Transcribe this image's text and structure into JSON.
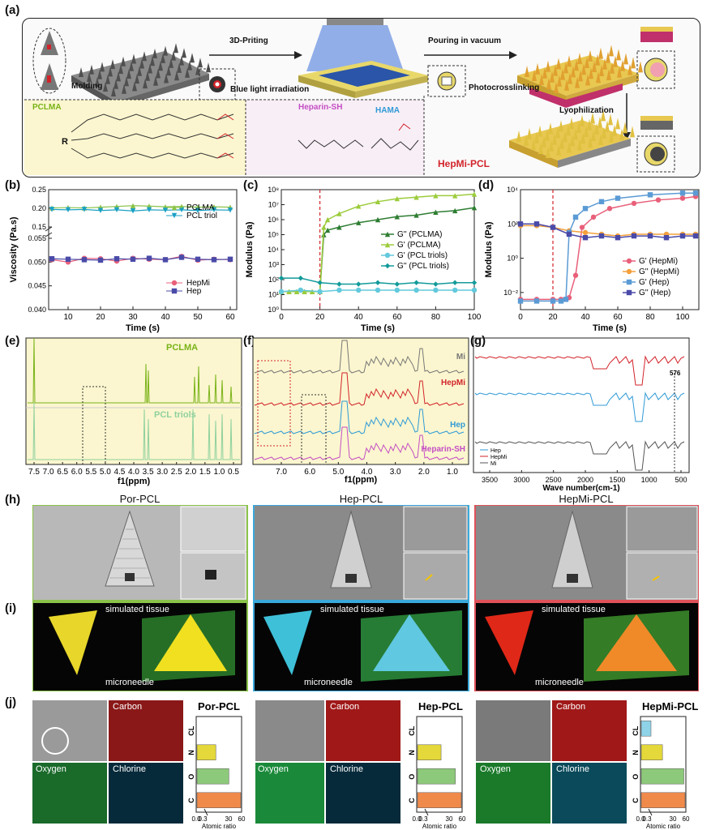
{
  "labels": {
    "a": "(a)",
    "b": "(b)",
    "c": "(c)",
    "d": "(d)",
    "e": "(e)",
    "f": "(f)",
    "g": "(g)",
    "h": "(h)",
    "i": "(i)",
    "j": "(j)"
  },
  "panel_a": {
    "molding": "Molding",
    "printing": "3D-Priting",
    "blue_light": "Blue light irradiation",
    "pouring": "Pouring in vacuum",
    "photocrosslinking": "Photocrosslinking",
    "lyophilization": "Lyophilization",
    "pclma": "PCLMA",
    "heparin_sh": "Heparin-SH",
    "hama": "HAMA",
    "r": "R",
    "hepmi_pcl": "HepMi-PCL",
    "colors": {
      "pclma": "#7ab317",
      "heparin": "#c44ec4",
      "hama": "#2f9ad6",
      "hepmi": "#d2232a"
    }
  },
  "chart_data": [
    {
      "id": "b",
      "type": "line",
      "xlabel": "Time (s)",
      "ylabel": "Viscosity (Pa.s)",
      "xlim": [
        4,
        62
      ],
      "xticks": [
        "10",
        "20",
        "30",
        "40",
        "50",
        "60"
      ],
      "yticks": [
        "0.040",
        "0.045",
        "0.050",
        "0.055",
        "0.15",
        "0.20",
        "0.25"
      ],
      "series": [
        {
          "name": "PCLMA",
          "color": "#8bc34a",
          "marker": "triangle-up",
          "x": [
            5,
            10,
            15,
            20,
            25,
            30,
            35,
            40,
            45,
            50,
            55,
            60
          ],
          "values": [
            0.201,
            0.202,
            0.201,
            0.203,
            0.205,
            0.207,
            0.206,
            0.204,
            0.205,
            0.203,
            0.204,
            0.203
          ]
        },
        {
          "name": "PCL triol",
          "color": "#1ba0c4",
          "marker": "triangle-down",
          "x": [
            5,
            10,
            15,
            20,
            25,
            30,
            35,
            40,
            45,
            50,
            55,
            60
          ],
          "values": [
            0.197,
            0.196,
            0.197,
            0.194,
            0.196,
            0.193,
            0.196,
            0.195,
            0.196,
            0.194,
            0.196,
            0.195
          ]
        },
        {
          "name": "HepMi",
          "color": "#e8607a",
          "marker": "circle",
          "x": [
            5,
            10,
            15,
            20,
            25,
            30,
            35,
            40,
            45,
            50,
            55,
            60
          ],
          "values": [
            0.0505,
            0.05,
            0.0508,
            0.0507,
            0.0502,
            0.0508,
            0.0506,
            0.0505,
            0.0512,
            0.0504,
            0.0506,
            0.0505
          ]
        },
        {
          "name": "Hep",
          "color": "#4a4aa8",
          "marker": "square",
          "x": [
            5,
            10,
            15,
            20,
            25,
            30,
            35,
            40,
            45,
            50,
            55,
            60
          ],
          "values": [
            0.0507,
            0.0506,
            0.0505,
            0.0504,
            0.0507,
            0.0506,
            0.0508,
            0.0505,
            0.051,
            0.0506,
            0.0505,
            0.0506
          ]
        }
      ]
    },
    {
      "id": "c",
      "type": "line",
      "xlabel": "Time (s)",
      "ylabel": "Modulus (Pa)",
      "xlim": [
        0,
        100
      ],
      "xticks": [
        "0",
        "20",
        "40",
        "60",
        "80",
        "100"
      ],
      "yticks": [
        "10⁰",
        "10¹",
        "10²",
        "10³",
        "10⁴",
        "10⁵",
        "10⁶",
        "10⁷",
        "10⁸"
      ],
      "ylog": true,
      "ylim_exp": [
        0,
        8
      ],
      "vline": 20,
      "series": [
        {
          "name": "G'' (PCLMA)",
          "color": "#2e7d32",
          "marker": "triangle-up",
          "x": [
            0,
            4,
            8,
            12,
            16,
            20,
            22,
            24,
            30,
            40,
            50,
            60,
            70,
            80,
            90,
            100
          ],
          "values": [
            1.2,
            1.2,
            1.2,
            1.2,
            1.2,
            1.2,
            5.0,
            5.3,
            5.5,
            5.8,
            6.0,
            6.2,
            6.3,
            6.5,
            6.6,
            6.8
          ]
        },
        {
          "name": "G' (PCLMA)",
          "color": "#9ccc3c",
          "marker": "triangle-up",
          "x": [
            0,
            4,
            8,
            12,
            16,
            20,
            22,
            24,
            30,
            40,
            50,
            60,
            70,
            80,
            90,
            100
          ],
          "values": [
            1.2,
            1.2,
            1.2,
            1.2,
            1.2,
            1.2,
            5.5,
            6.0,
            6.4,
            6.9,
            7.2,
            7.4,
            7.5,
            7.6,
            7.6,
            7.7
          ]
        },
        {
          "name": "G' (PCL triols)",
          "color": "#63c9dc",
          "marker": "circle",
          "x": [
            0,
            10,
            20,
            30,
            40,
            50,
            60,
            70,
            80,
            90,
            100
          ],
          "values": [
            1.2,
            1.3,
            1.2,
            1.3,
            1.3,
            1.3,
            1.3,
            1.3,
            1.3,
            1.3,
            1.3
          ]
        },
        {
          "name": "G'' (PCL triols)",
          "color": "#139a9a",
          "marker": "diamond",
          "x": [
            0,
            10,
            20,
            30,
            40,
            50,
            60,
            70,
            80,
            90,
            100
          ],
          "values": [
            2.1,
            2.1,
            1.8,
            1.7,
            1.7,
            1.8,
            1.7,
            1.8,
            1.7,
            1.8,
            1.8
          ]
        }
      ]
    },
    {
      "id": "d",
      "type": "line",
      "xlabel": "Time (s)",
      "ylabel": "Modulus (Pa)",
      "xlim": [
        0,
        110
      ],
      "xticks": [
        "0",
        "20",
        "40",
        "60",
        "80",
        "100"
      ],
      "yticks": [
        "10⁻²",
        "10⁰",
        "10²",
        "10⁴"
      ],
      "ylog": true,
      "ylim_exp": [
        -3,
        4
      ],
      "vline": 20,
      "series": [
        {
          "name": "G' (HepMi)",
          "color": "#e8607a",
          "marker": "circle",
          "x": [
            0,
            10,
            20,
            25,
            30,
            34,
            38,
            45,
            55,
            70,
            85,
            100,
            108
          ],
          "values": [
            -2.4,
            -2.4,
            -2.4,
            -2.4,
            -2.3,
            -1.0,
            1.8,
            2.4,
            2.9,
            3.2,
            3.4,
            3.5,
            3.6
          ]
        },
        {
          "name": "G'' (HepMi)",
          "color": "#f4a03c",
          "marker": "circle",
          "x": [
            0,
            10,
            20,
            30,
            40,
            50,
            60,
            70,
            80,
            90,
            100,
            108
          ],
          "values": [
            1.9,
            1.9,
            1.8,
            1.6,
            1.5,
            1.4,
            1.3,
            1.4,
            1.4,
            1.4,
            1.4,
            1.4
          ]
        },
        {
          "name": "G' (Hep)",
          "color": "#5b9bd5",
          "marker": "square",
          "x": [
            0,
            10,
            20,
            25,
            28,
            30,
            34,
            40,
            50,
            60,
            80,
            100,
            108
          ],
          "values": [
            -2.5,
            -2.5,
            -2.5,
            -2.5,
            -2.4,
            1.5,
            2.4,
            2.9,
            3.3,
            3.5,
            3.7,
            3.8,
            3.8
          ]
        },
        {
          "name": "G'' (Hep)",
          "color": "#4a4aa8",
          "marker": "square",
          "x": [
            0,
            10,
            20,
            30,
            40,
            50,
            60,
            70,
            80,
            90,
            100,
            108
          ],
          "values": [
            2.0,
            2.0,
            1.8,
            1.4,
            1.2,
            1.3,
            1.2,
            1.3,
            1.3,
            1.2,
            1.3,
            1.3
          ]
        }
      ]
    },
    {
      "id": "e",
      "type": "line",
      "xlabel": "f1(ppm)",
      "xticks": [
        "7.5",
        "7.0",
        "6.5",
        "6.0",
        "5.5",
        "5.0",
        "4.5",
        "4.0",
        "3.5",
        "3.0",
        "2.5",
        "2.0",
        "1.5",
        "1.0",
        "0.5"
      ],
      "series": [
        {
          "name": "PCLMA",
          "color": "#7ab317"
        },
        {
          "name": "PCL triols",
          "color": "#8fd19e"
        }
      ]
    },
    {
      "id": "f",
      "type": "line",
      "xlabel": "f1(ppm)",
      "xticks": [
        "7.0",
        "6.0",
        "5.0",
        "4.0",
        "3.0",
        "2.0",
        "1.0"
      ],
      "series": [
        {
          "name": "Mi",
          "color": "#777777"
        },
        {
          "name": "HepMi",
          "color": "#d2232a"
        },
        {
          "name": "Hep",
          "color": "#2f9ad6"
        },
        {
          "name": "Heparin-SH",
          "color": "#c44ec4"
        }
      ]
    },
    {
      "id": "g",
      "type": "line",
      "xlabel": "Wave number(cm-1)",
      "xticks": [
        "3500",
        "3000",
        "2500",
        "2000",
        "1500",
        "1000",
        "500"
      ],
      "annotation": "576",
      "series": [
        {
          "name": "Hep",
          "color": "#2f9ad6"
        },
        {
          "name": "HepMi",
          "color": "#d2232a"
        },
        {
          "name": "Mi",
          "color": "#555555"
        }
      ]
    },
    {
      "id": "j1",
      "type": "bar",
      "title": "Por-PCL",
      "categories": [
        "C",
        "O",
        "N",
        "CL"
      ],
      "values": [
        60,
        40,
        18,
        0
      ],
      "colors": [
        "#f08a4b",
        "#8dc97a",
        "#e4d83a",
        "#8fd3e8"
      ],
      "xticks": [
        "0.0",
        "0.3",
        "30",
        "60"
      ],
      "xlabel": "Atomic ratio"
    },
    {
      "id": "j2",
      "type": "bar",
      "title": "Hep-PCL",
      "categories": [
        "C",
        "O",
        "N",
        "CL"
      ],
      "values": [
        60,
        50,
        26,
        0
      ],
      "colors": [
        "#f08a4b",
        "#8dc97a",
        "#e4d83a",
        "#8fd3e8"
      ],
      "xticks": [
        "0.0",
        "0.3",
        "30",
        "60"
      ],
      "xlabel": "Atomic ratio"
    },
    {
      "id": "j3",
      "type": "bar",
      "title": "HepMi-PCL",
      "categories": [
        "C",
        "O",
        "N",
        "CL"
      ],
      "values": [
        60,
        58,
        22,
        0.2
      ],
      "colors": [
        "#f08a4b",
        "#8dc97a",
        "#e4d83a",
        "#8fd3e8"
      ],
      "xticks": [
        "0.0",
        "0.3",
        "30",
        "60"
      ],
      "xlabel": "Atomic ratio"
    }
  ],
  "panel_h": {
    "titles": [
      "Por-PCL",
      "Hep-PCL",
      "HepMi-PCL"
    ],
    "frame_colors": [
      "#8bc34a",
      "#39a9dc",
      "#e0525a"
    ]
  },
  "panel_i": {
    "simulated_tissue": "simulated tissue",
    "microneedle": "microneedle"
  },
  "panel_j": {
    "carbon": "Carbon",
    "oxygen": "Oxygen",
    "chlorine": "Chlorine"
  }
}
